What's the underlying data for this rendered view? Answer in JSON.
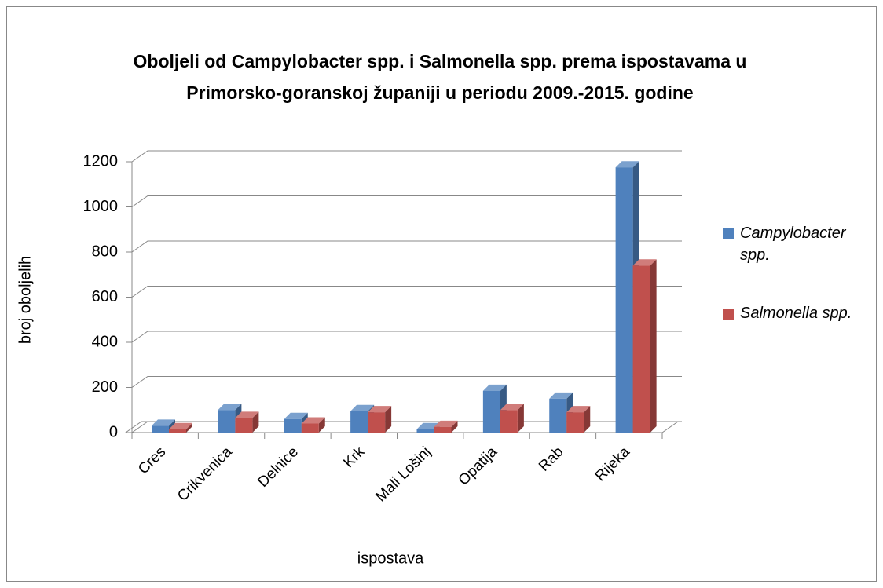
{
  "chart_data": {
    "type": "bar3d",
    "title": [
      "Oboljeli od Campylobacter spp. i Salmonella spp. prema ispostavama u",
      "Primorsko-goranskoj županiji u periodu 2009.-2015. godine"
    ],
    "x_label": "ispostava",
    "y_label": "broj oboljelih",
    "categories": [
      "Cres",
      "Crikvenica",
      "Delnice",
      "Krk",
      "Mali Lošinj",
      "Opatija",
      "Rab",
      "Rijeka"
    ],
    "series": [
      {
        "name": "Campylobacter spp.",
        "color": "#4f81bd",
        "values": [
          30,
          100,
          60,
          95,
          15,
          185,
          150,
          1175
        ]
      },
      {
        "name": "Salmonella spp.",
        "color": "#c0504d",
        "values": [
          15,
          65,
          40,
          90,
          25,
          100,
          90,
          740
        ]
      }
    ],
    "ylim": [
      0,
      1200
    ],
    "yticks": [
      0,
      200,
      400,
      600,
      800,
      1000,
      1200
    ],
    "grid": true,
    "legend": "right"
  }
}
